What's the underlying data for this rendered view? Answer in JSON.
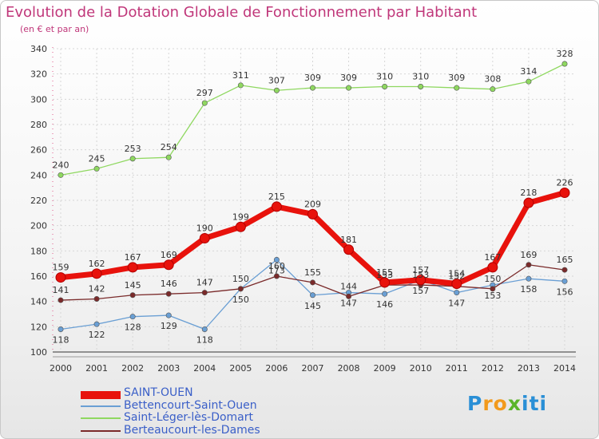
{
  "title": "Evolution de la Dotation Globale de Fonctionnement par Habitant",
  "subtitle": "(en € et par an)",
  "logo": {
    "letters": [
      "P",
      "r",
      "o",
      "x",
      "i",
      "t",
      "i"
    ],
    "colors": [
      "#2a8fd6",
      "#f29a1c",
      "#f29a1c",
      "#5ab52a",
      "#2a8fd6",
      "#2a8fd6",
      "#2a8fd6"
    ]
  },
  "chart_data": {
    "type": "line",
    "title": "Evolution de la Dotation Globale de Fonctionnement par Habitant",
    "ylabel": "(en € et par an)",
    "xlabel": "",
    "ylim": [
      100,
      340
    ],
    "yticks": [
      100,
      120,
      140,
      160,
      180,
      200,
      220,
      240,
      260,
      280,
      300,
      320,
      340
    ],
    "grid": true,
    "x": [
      "2000",
      "2001",
      "2002",
      "2003",
      "2004",
      "2005",
      "2006",
      "2007",
      "2008",
      "2009",
      "2010",
      "2011",
      "2012",
      "2013",
      "2014"
    ],
    "series": [
      {
        "name": "SAINT-OUEN",
        "color": "#e8120c",
        "values": [
          159,
          162,
          167,
          169,
          190,
          199,
          215,
          209,
          181,
          155,
          157,
          154,
          167,
          218,
          226
        ],
        "labels": [
          "159",
          "162",
          "167",
          "169",
          "190",
          "199",
          "215",
          "209",
          "181",
          "155",
          "157",
          "154",
          "167",
          "218",
          "226"
        ]
      },
      {
        "name": "Bettencourt-Saint-Ouen",
        "color": "#6a9fd4",
        "values": [
          118,
          122,
          128,
          129,
          118,
          150,
          173,
          145,
          147,
          146,
          157,
          147,
          153,
          158,
          156
        ],
        "labels": [
          "118",
          "122",
          "128",
          "129",
          "118",
          "150",
          "173",
          "145",
          "147",
          "146",
          "157",
          "147",
          "153",
          "158",
          "156"
        ]
      },
      {
        "name": "Saint-Léger-lès-Domart",
        "color": "#8fd860",
        "values": [
          240,
          245,
          253,
          254,
          297,
          311,
          307,
          309,
          309,
          310,
          310,
          309,
          308,
          314,
          328
        ],
        "labels": [
          "240",
          "245",
          "253",
          "254",
          "297",
          "311",
          "307",
          "309",
          "309",
          "310",
          "310",
          "309",
          "308",
          "314",
          "328"
        ]
      },
      {
        "name": "Berteaucourt-les-Dames",
        "color": "#7a2a2a",
        "values": [
          141,
          142,
          145,
          146,
          147,
          150,
          160,
          155,
          144,
          153,
          153,
          152,
          150,
          169,
          165
        ],
        "labels": [
          "141",
          "142",
          "145",
          "146",
          "147",
          "150",
          "160",
          "155",
          "144",
          "153",
          "153",
          "152",
          "150",
          "169",
          "165"
        ]
      }
    ]
  }
}
